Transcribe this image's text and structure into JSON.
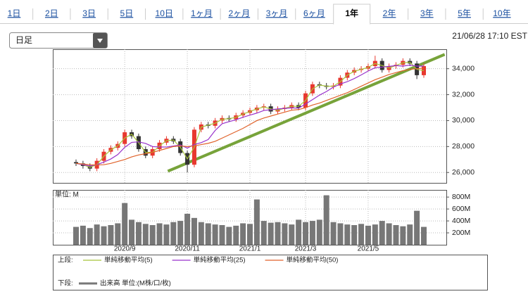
{
  "tabs": [
    {
      "label": "1日"
    },
    {
      "label": "2日"
    },
    {
      "label": "3日"
    },
    {
      "label": "5日"
    },
    {
      "label": "10日"
    },
    {
      "label": "1ヶ月"
    },
    {
      "label": "2ヶ月"
    },
    {
      "label": "3ヶ月"
    },
    {
      "label": "6ヶ月"
    },
    {
      "label": "1年",
      "selected": true
    },
    {
      "label": "2年"
    },
    {
      "label": "3年"
    },
    {
      "label": "5年"
    },
    {
      "label": "10年"
    }
  ],
  "timeframe": "日足",
  "timestamp": "21/06/28 17:10 EST",
  "chart_data": [
    {
      "type": "candlestick",
      "legend_prefix": "上段:",
      "up_color": "#e8382f",
      "down_color": "#333333",
      "grid": true,
      "ylim": [
        25200,
        35500
      ],
      "yticks": [
        {
          "value": 26000,
          "label": "26,000"
        },
        {
          "value": 28000,
          "label": "28,000"
        },
        {
          "value": 30000,
          "label": "30,000"
        },
        {
          "value": 32000,
          "label": "32,000"
        },
        {
          "value": 34000,
          "label": "34,000"
        }
      ],
      "ohlc": {
        "open": [
          26800,
          26700,
          26500,
          26300,
          26900,
          27600,
          27900,
          28200,
          29100,
          28800,
          27800,
          27300,
          27800,
          28300,
          28600,
          28400,
          27500,
          26600,
          29300,
          29700,
          29600,
          30000,
          30200,
          30100,
          30400,
          30600,
          30800,
          31000,
          31100,
          30700,
          30900,
          31000,
          31200,
          31000,
          32100,
          32800,
          32700,
          32600,
          32700,
          33300,
          33700,
          33900,
          34000,
          34200,
          34600,
          33900,
          34200,
          34300,
          34600,
          34400,
          33500
        ],
        "high": [
          27000,
          26900,
          26700,
          27100,
          27800,
          28100,
          28400,
          29300,
          29300,
          29000,
          28000,
          28000,
          28500,
          28800,
          28800,
          28600,
          27700,
          29500,
          29900,
          29900,
          30200,
          30400,
          30400,
          30600,
          30800,
          31000,
          31200,
          31300,
          31300,
          31100,
          31200,
          31400,
          31400,
          32300,
          33000,
          33000,
          32900,
          32900,
          33500,
          33900,
          34100,
          34200,
          34400,
          35000,
          34800,
          34400,
          34500,
          34800,
          34800,
          34600,
          34400
        ],
        "low": [
          26500,
          26300,
          26100,
          26100,
          26700,
          27400,
          27700,
          28000,
          28600,
          27600,
          27100,
          27100,
          27600,
          28100,
          28200,
          27300,
          26000,
          26400,
          29100,
          29400,
          29400,
          29800,
          29900,
          29900,
          30200,
          30400,
          30600,
          30800,
          30500,
          30500,
          30700,
          30800,
          30800,
          30800,
          31900,
          32500,
          32400,
          32400,
          32500,
          33100,
          33500,
          33700,
          33800,
          34000,
          33700,
          33700,
          34000,
          34100,
          34200,
          33200,
          33300
        ],
        "close": [
          26700,
          26500,
          26300,
          26900,
          27600,
          27900,
          28200,
          29100,
          28800,
          27800,
          27300,
          27800,
          28300,
          28600,
          28400,
          27500,
          26600,
          29300,
          29700,
          29600,
          30000,
          30200,
          30100,
          30400,
          30600,
          30800,
          31000,
          31100,
          30700,
          30900,
          31000,
          31200,
          31000,
          32100,
          32800,
          32700,
          32600,
          32700,
          33300,
          33700,
          33900,
          34000,
          34200,
          34600,
          33900,
          34200,
          34300,
          34600,
          34400,
          33500,
          34200
        ]
      },
      "series": [
        {
          "name": "単純移動平均(5)",
          "color": "#a8c43a",
          "values": [
            26700,
            26600,
            26400,
            26600,
            27250,
            27750,
            28050,
            28650,
            28950,
            28300,
            27550,
            27550,
            28050,
            28450,
            28500,
            27950,
            27050,
            27950,
            29500,
            29650,
            29800,
            30100,
            30150,
            30250,
            30500,
            30700,
            30900,
            31050,
            30900,
            30800,
            30950,
            31100,
            31100,
            31550,
            32450,
            32750,
            32650,
            32650,
            33000,
            33500,
            33800,
            33950,
            34100,
            34400,
            34250,
            34050,
            34250,
            34450,
            34500,
            33950,
            33850
          ]
        },
        {
          "name": "単純移動平均(25)",
          "color": "#9933cc",
          "values": [
            26700,
            26600,
            26500,
            26600,
            26800,
            27040,
            27380,
            27940,
            28320,
            28360,
            28240,
            28000,
            27960,
            27960,
            28040,
            28120,
            27880,
            28160,
            28300,
            28540,
            29240,
            29760,
            29920,
            30060,
            30260,
            30420,
            30580,
            30780,
            30840,
            30900,
            30940,
            30980,
            30960,
            31280,
            31620,
            31960,
            32240,
            32580,
            32820,
            33000,
            33240,
            33520,
            33820,
            34080,
            34120,
            34180,
            34240,
            34200,
            34280,
            34200,
            34200
          ]
        },
        {
          "name": "単純移動平均(50)",
          "color": "#e0622a",
          "values": [
            26700,
            26650,
            26600,
            26580,
            26600,
            26700,
            26850,
            27000,
            27200,
            27350,
            27450,
            27550,
            27700,
            27850,
            28000,
            28050,
            28000,
            28050,
            28150,
            28250,
            28400,
            28650,
            28900,
            29150,
            29400,
            29700,
            30000,
            30200,
            30350,
            30500,
            30650,
            30800,
            30850,
            31000,
            31200,
            31350,
            31550,
            31750,
            31950,
            32150,
            32400,
            32650,
            32900,
            33150,
            33350,
            33550,
            33700,
            33850,
            33950,
            34000,
            34050
          ]
        }
      ],
      "trendline": {
        "color": "#77a33a",
        "x": [
          13.2,
          53
        ],
        "values": [
          26100,
          35100
        ]
      }
    },
    {
      "type": "bar",
      "legend_prefix": "下段:",
      "unit_label": "単位: M",
      "grid": true,
      "categories": [
        null,
        null,
        null,
        null,
        null,
        null,
        null,
        "2020/9",
        null,
        null,
        null,
        null,
        null,
        null,
        null,
        null,
        "2020/11",
        null,
        null,
        null,
        null,
        null,
        null,
        null,
        null,
        "2021/1",
        null,
        null,
        null,
        null,
        null,
        null,
        null,
        "2021/3",
        null,
        null,
        null,
        null,
        null,
        null,
        null,
        null,
        "2021/5",
        null,
        null,
        null,
        null,
        null,
        null,
        null,
        null
      ],
      "ylim": [
        0,
        920
      ],
      "yticks": [
        {
          "value": 200,
          "label": "200M"
        },
        {
          "value": 400,
          "label": "400M"
        },
        {
          "value": 600,
          "label": "600M"
        },
        {
          "value": 800,
          "label": "800M"
        }
      ],
      "series": [
        {
          "name": "出来高 単位:(M株/口/枚)",
          "color": "#777777",
          "values": [
            300,
            320,
            280,
            340,
            310,
            330,
            360,
            700,
            420,
            380,
            350,
            330,
            360,
            340,
            380,
            400,
            520,
            450,
            380,
            360,
            340,
            330,
            300,
            320,
            360,
            350,
            760,
            400,
            370,
            380,
            360,
            340,
            420,
            380,
            400,
            420,
            830,
            380,
            360,
            340,
            330,
            350,
            320,
            340,
            400,
            360,
            330,
            310,
            340,
            570,
            300
          ]
        }
      ]
    }
  ]
}
